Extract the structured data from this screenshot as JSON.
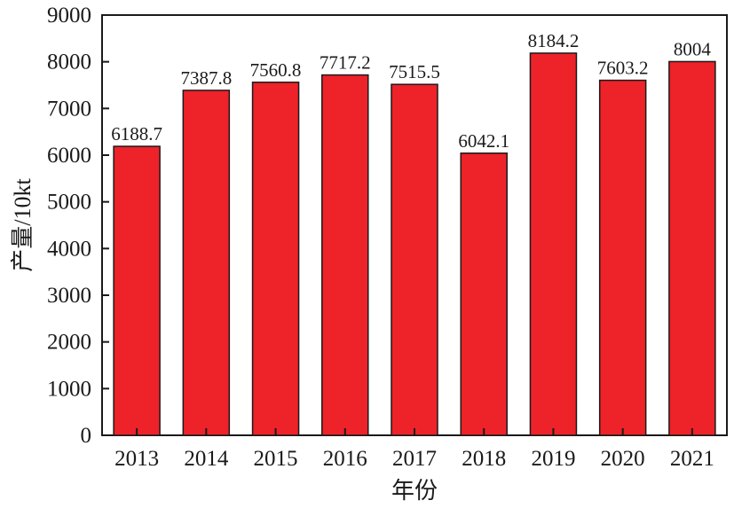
{
  "chart_data": {
    "type": "bar",
    "categories": [
      "2013",
      "2014",
      "2015",
      "2016",
      "2017",
      "2018",
      "2019",
      "2020",
      "2021"
    ],
    "values": [
      6188.7,
      7387.8,
      7560.8,
      7717.2,
      7515.5,
      6042.1,
      8184.2,
      7603.2,
      8004
    ],
    "value_labels": [
      "6188.7",
      "7387.8",
      "7560.8",
      "7717.2",
      "7515.5",
      "6042.1",
      "8184.2",
      "7603.2",
      "8004"
    ],
    "title": "",
    "xlabel": "年份",
    "ylabel": "产量/10kt",
    "ylim": [
      0,
      9000
    ],
    "yticks": [
      "0",
      "1000",
      "2000",
      "3000",
      "4000",
      "5000",
      "6000",
      "7000",
      "8000",
      "9000"
    ],
    "grid": false,
    "legend": "none",
    "colors": {
      "bar_fill": "#ee2229",
      "bar_stroke": "#1a1a1a",
      "axis": "#1a1a1a"
    }
  }
}
